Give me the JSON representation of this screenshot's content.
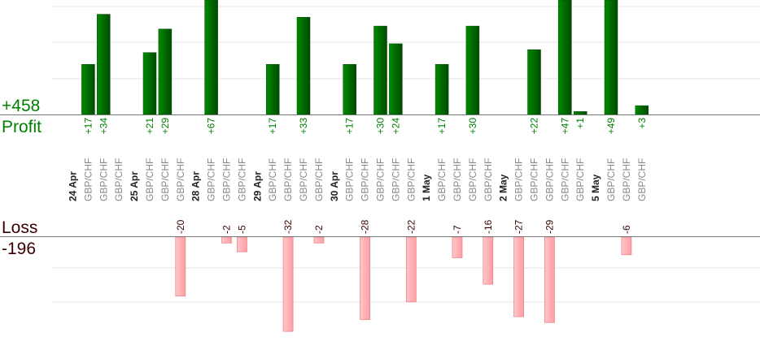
{
  "chart_data": {
    "type": "bar",
    "profit_total": "+458",
    "profit_label": "Profit",
    "loss_label": "Loss",
    "loss_total": "-196",
    "pair": "GBP/CHF",
    "dates": [
      "24 Apr",
      "25 Apr",
      "28 Apr",
      "29 Apr",
      "30 Apr",
      "1 May",
      "2 May",
      "5 May"
    ],
    "trades": [
      {
        "slot": 1,
        "value": 17,
        "label": "+17"
      },
      {
        "slot": 2,
        "value": 34,
        "label": "+34"
      },
      {
        "slot": 3,
        "value": null
      },
      {
        "slot": 5,
        "value": 21,
        "label": "+21"
      },
      {
        "slot": 6,
        "value": 29,
        "label": "+29"
      },
      {
        "slot": 7,
        "value": -20,
        "label": "-20"
      },
      {
        "slot": 9,
        "value": 67,
        "label": "+67"
      },
      {
        "slot": 10,
        "value": -2,
        "label": "-2"
      },
      {
        "slot": 11,
        "value": -5,
        "label": "-5"
      },
      {
        "slot": 13,
        "value": 17,
        "label": "+17"
      },
      {
        "slot": 14,
        "value": -32,
        "label": "-32"
      },
      {
        "slot": 15,
        "value": 33,
        "label": "+33"
      },
      {
        "slot": 16,
        "value": -2,
        "label": "-2"
      },
      {
        "slot": 18,
        "value": 17,
        "label": "+17"
      },
      {
        "slot": 19,
        "value": -28,
        "label": "-28"
      },
      {
        "slot": 20,
        "value": 30,
        "label": "+30"
      },
      {
        "slot": 21,
        "value": 24,
        "label": "+24"
      },
      {
        "slot": 22,
        "value": -22,
        "label": "-22"
      },
      {
        "slot": 24,
        "value": 17,
        "label": "+17"
      },
      {
        "slot": 25,
        "value": -7,
        "label": "-7"
      },
      {
        "slot": 26,
        "value": 30,
        "label": "+30"
      },
      {
        "slot": 27,
        "value": -16,
        "label": "-16"
      },
      {
        "slot": 29,
        "value": -27,
        "label": "-27"
      },
      {
        "slot": 30,
        "value": 22,
        "label": "+22"
      },
      {
        "slot": 31,
        "value": -29,
        "label": "-29"
      },
      {
        "slot": 32,
        "value": 47,
        "label": "+47"
      },
      {
        "slot": 33,
        "value": 1,
        "label": "+1"
      },
      {
        "slot": 35,
        "value": 49,
        "label": "+49"
      },
      {
        "slot": 36,
        "value": -6,
        "label": "-6"
      },
      {
        "slot": 37,
        "value": 3,
        "label": "+3"
      }
    ],
    "colors": {
      "profit_bar": "#006400",
      "profit_bar_dark": "#004a00",
      "profit_text": "#008000",
      "loss_bar": "#ffb3b6",
      "loss_bar_edge": "#e87d82",
      "loss_text": "#3a0000",
      "axis": "#777777",
      "grid": "#e6e6e6"
    }
  }
}
